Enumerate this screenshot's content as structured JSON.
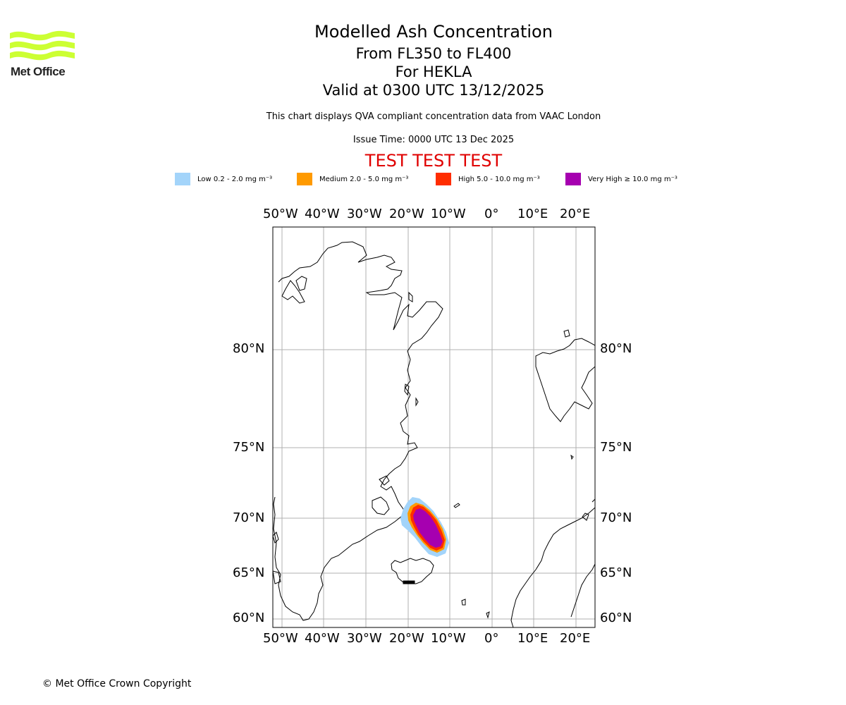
{
  "branding": {
    "logo_text": "Met Office",
    "logo_color": "#ccff33"
  },
  "header": {
    "title": "Modelled Ash Concentration",
    "flight_levels": "From FL350 to FL400",
    "volcano": "For HEKLA",
    "valid_time": "Valid at 0300 UTC 13/12/2025",
    "description": "This chart displays QVA compliant concentration data from VAAC London",
    "issue_time": "Issue Time: 0000 UTC 13 Dec 2025",
    "test_banner": "TEST TEST TEST"
  },
  "legend": [
    {
      "label": "Low 0.2 - 2.0 mg m⁻³",
      "color": "#a3d4fa"
    },
    {
      "label": "Medium 2.0 - 5.0 mg m⁻³",
      "color": "#ff9a00"
    },
    {
      "label": "High 5.0 - 10.0 mg m⁻³",
      "color": "#ff2d00"
    },
    {
      "label": "Very High  ≥  10.0 mg m⁻³",
      "color": "#a600b0"
    }
  ],
  "map": {
    "lon_labels": [
      "50°W",
      "40°W",
      "30°W",
      "20°W",
      "10°W",
      "0°",
      "10°E",
      "20°E"
    ],
    "lat_labels": [
      "80°N",
      "75°N",
      "70°N",
      "65°N",
      "60°N"
    ],
    "ash_plume": {
      "location": "north-east of Iceland",
      "center_lat": 69.5,
      "center_lon": -15
    }
  },
  "footer": {
    "copyright": "© Met Office Crown Copyright"
  }
}
